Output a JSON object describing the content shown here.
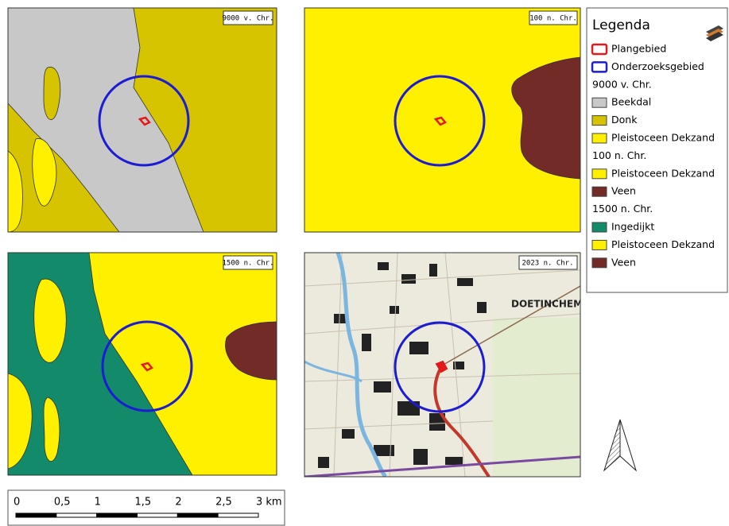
{
  "panels": [
    {
      "label": "9000 v. Chr."
    },
    {
      "label": "100 n. Chr."
    },
    {
      "label": "1500 n. Chr."
    },
    {
      "label": "2023 n. Chr.",
      "place": "DOETINCHEM"
    }
  ],
  "legend": {
    "title": "Legenda",
    "items": [
      {
        "label": "Plangebied",
        "color": "#e31a1c",
        "kind": "outline"
      },
      {
        "label": "Onderzoeksgebied",
        "color": "#1c1cd4",
        "kind": "outline"
      }
    ],
    "groups": [
      {
        "heading": "9000 v. Chr.",
        "items": [
          {
            "label": "Beekdal",
            "color": "#c8c8c8"
          },
          {
            "label": "Donk",
            "color": "#d6c400"
          },
          {
            "label": "Pleistoceen Dekzand",
            "color": "#fff000"
          }
        ]
      },
      {
        "heading": "100 n. Chr.",
        "items": [
          {
            "label": "Pleistoceen Dekzand",
            "color": "#fff000"
          },
          {
            "label": "Veen",
            "color": "#722b26"
          }
        ]
      },
      {
        "heading": "1500 n. Chr.",
        "items": [
          {
            "label": "Ingedijkt",
            "color": "#138a6a"
          },
          {
            "label": "Pleistoceen Dekzand",
            "color": "#fff000"
          },
          {
            "label": "Veen",
            "color": "#722b26"
          }
        ]
      }
    ]
  },
  "scale_bar": {
    "labels": [
      "0",
      "0,5",
      "1",
      "1,5",
      "2",
      "2,5",
      "3 km"
    ]
  }
}
